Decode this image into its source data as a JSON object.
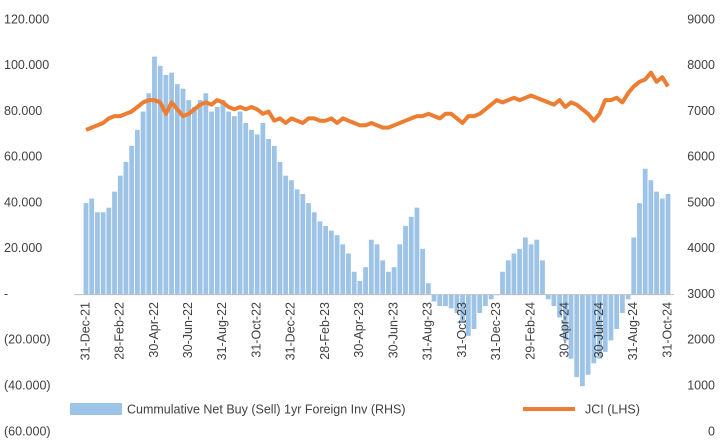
{
  "chart_data": {
    "type": "bar-line",
    "categories": [
      "31-Dec-21",
      null,
      null,
      null,
      null,
      null,
      "28-Feb-22",
      null,
      null,
      null,
      null,
      null,
      "30-Apr-22",
      null,
      null,
      null,
      null,
      null,
      "30-Jun-22",
      null,
      null,
      null,
      null,
      null,
      "31-Aug-22",
      null,
      null,
      null,
      null,
      null,
      "31-Oct-22",
      null,
      null,
      null,
      null,
      null,
      "31-Dec-22",
      null,
      null,
      null,
      null,
      null,
      "28-Feb-23",
      null,
      null,
      null,
      null,
      null,
      "30-Apr-23",
      null,
      null,
      null,
      null,
      null,
      "30-Jun-23",
      null,
      null,
      null,
      null,
      null,
      "31-Aug-23",
      null,
      null,
      null,
      null,
      null,
      "31-Oct-23",
      null,
      null,
      null,
      null,
      null,
      "31-Dec-23",
      null,
      null,
      null,
      null,
      null,
      "29-Feb-24",
      null,
      null,
      null,
      null,
      null,
      "30-Apr-24",
      null,
      null,
      null,
      null,
      null,
      "30-Jun-24",
      null,
      null,
      null,
      null,
      null,
      "31-Aug-24",
      null,
      null,
      null,
      null,
      null,
      "31-Oct-24"
    ],
    "series": [
      {
        "name": "Cummulative Net Buy (Sell) 1yr Foreign Inv (RHS)",
        "color": "#9dc3e6",
        "kind": "bar",
        "values": [
          40000,
          42000,
          36000,
          36000,
          38000,
          45000,
          52000,
          58000,
          65000,
          72000,
          80000,
          88000,
          104000,
          100000,
          96000,
          97000,
          92000,
          90000,
          85000,
          82000,
          85000,
          88000,
          80000,
          82000,
          85000,
          80000,
          78000,
          80000,
          75000,
          72000,
          70000,
          75000,
          68000,
          65000,
          58000,
          52000,
          50000,
          46000,
          44000,
          40000,
          36000,
          32000,
          30000,
          28000,
          26000,
          22000,
          18000,
          10000,
          6000,
          12000,
          24000,
          22000,
          15000,
          10000,
          12000,
          22000,
          30000,
          34000,
          38000,
          20000,
          5000,
          -3000,
          -5000,
          -5000,
          -6000,
          -8000,
          -12000,
          -18000,
          -15000,
          -8000,
          -5000,
          -2000,
          0,
          10000,
          15000,
          18000,
          20000,
          25000,
          22000,
          24000,
          15000,
          -2000,
          -5000,
          -10000,
          -20000,
          -28000,
          -36000,
          -40000,
          -35000,
          -30000,
          -28000,
          -25000,
          -20000,
          -15000,
          -8000,
          -2000,
          25000,
          40000,
          55000,
          50000,
          45000,
          42000,
          44000
        ]
      },
      {
        "name": "JCI (LHS)",
        "color": "#ed7d31",
        "kind": "line",
        "axis": "y2",
        "values": [
          6600,
          6650,
          6700,
          6750,
          6850,
          6900,
          6900,
          6950,
          7000,
          7100,
          7200,
          7250,
          7250,
          7200,
          6950,
          7200,
          7050,
          6900,
          6950,
          7050,
          7150,
          7200,
          7150,
          7250,
          7200,
          7100,
          7050,
          7100,
          7050,
          7100,
          7050,
          6950,
          7000,
          6800,
          6850,
          6750,
          6850,
          6800,
          6750,
          6850,
          6850,
          6800,
          6800,
          6850,
          6750,
          6850,
          6800,
          6750,
          6700,
          6700,
          6750,
          6700,
          6650,
          6650,
          6700,
          6750,
          6800,
          6850,
          6900,
          6900,
          6950,
          6900,
          6850,
          6950,
          6950,
          6850,
          6750,
          6900,
          6900,
          6950,
          7050,
          7150,
          7250,
          7200,
          7250,
          7300,
          7250,
          7300,
          7350,
          7300,
          7250,
          7200,
          7150,
          7250,
          7100,
          7200,
          7150,
          7050,
          6950,
          6800,
          6950,
          7250,
          7250,
          7300,
          7200,
          7400,
          7550,
          7650,
          7700,
          7850,
          7650,
          7750,
          7550
        ]
      }
    ],
    "ylim": [
      -60000,
      120000
    ],
    "yticks": [
      {
        "value": -60000,
        "label": "(60.000)"
      },
      {
        "value": -40000,
        "label": "(40.000)"
      },
      {
        "value": -20000,
        "label": "(20.000)"
      },
      {
        "value": 0,
        "label": "-"
      },
      {
        "value": 20000,
        "label": "20.000"
      },
      {
        "value": 40000,
        "label": "40.000"
      },
      {
        "value": 60000,
        "label": "60.000"
      },
      {
        "value": 80000,
        "label": "80.000"
      },
      {
        "value": 100000,
        "label": "100.000"
      },
      {
        "value": 120000,
        "label": "120.000"
      }
    ],
    "y2lim": [
      0,
      9000
    ],
    "y2ticks": [
      0,
      1000,
      2000,
      3000,
      4000,
      5000,
      6000,
      7000,
      8000,
      9000
    ]
  }
}
